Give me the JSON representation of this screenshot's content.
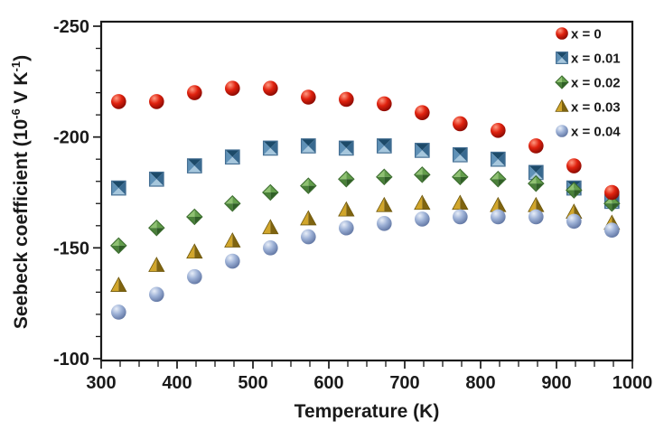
{
  "figure": {
    "background": "#ffffff",
    "frame_color": "#1a1a1a",
    "text_color": "#1a1a1a"
  },
  "chart_data": {
    "type": "scatter",
    "title": "",
    "xlabel": "Temperature (K)",
    "ylabel": "Seebeck coefficient (10⁻⁶ V K⁻¹)",
    "ylabel_parts": [
      {
        "t": "Seebeck coefficient (10"
      },
      {
        "t": "-6",
        "sup": true
      },
      {
        "t": " V K",
        "sup": false
      },
      {
        "t": "-1",
        "sup": true
      },
      {
        "t": ")",
        "sup": false
      }
    ],
    "xlim": [
      300,
      1000
    ],
    "ylim": [
      -250,
      -100
    ],
    "y_axis_reversed_top_is_negative": true,
    "x_major_tick": 100,
    "x_minor_tick": 25,
    "y_major_tick": 50,
    "y_minor_tick": 10,
    "x_tick_labels": [
      "300",
      "400",
      "500",
      "600",
      "700",
      "800",
      "900",
      "1000"
    ],
    "y_tick_labels": [
      "-250",
      "-200",
      "-150",
      "-100"
    ],
    "grid": false,
    "legend_position": "top-right-inside",
    "x": [
      323,
      373,
      423,
      473,
      523,
      573,
      623,
      673,
      723,
      773,
      823,
      873,
      923,
      973
    ],
    "series": [
      {
        "name": "x = 0",
        "marker": "sphere",
        "colors": {
          "light": "#ff9a82",
          "base": "#e0220f",
          "dark": "#7e0600"
        },
        "values": [
          -216,
          -216,
          -220,
          -222,
          -222,
          -218,
          -217,
          -215,
          -211,
          -206,
          -203,
          -196,
          -187,
          -175
        ]
      },
      {
        "name": "x = 0.01",
        "marker": "square",
        "colors": {
          "bright": "#a6c7dd",
          "mid1": "#5f91b7",
          "mid2": "#38698f",
          "dark": "#1c4a69",
          "border": "#456f93"
        },
        "values": [
          -177,
          -181,
          -187,
          -191,
          -195,
          -196,
          -195,
          -196,
          -194,
          -192,
          -190,
          -184,
          -177,
          -171
        ]
      },
      {
        "name": "x = 0.02",
        "marker": "diamond",
        "colors": {
          "bright": "#8fc172",
          "mid1": "#639e4b",
          "mid2": "#4a8139",
          "dark": "#305f27",
          "border": "#3c6d2f"
        },
        "values": [
          -151,
          -159,
          -164,
          -170,
          -175,
          -178,
          -181,
          -182,
          -183,
          -182,
          -181,
          -179,
          -176,
          -170
        ]
      },
      {
        "name": "x = 0.03",
        "marker": "triangle",
        "colors": {
          "light": "#d1a62c",
          "dark": "#7f6410",
          "border": "#6d5609"
        },
        "values": [
          -133,
          -142,
          -148,
          -153,
          -159,
          -163,
          -167,
          -169,
          -170,
          -170,
          -169,
          -169,
          -166,
          -161
        ]
      },
      {
        "name": "x = 0.04",
        "marker": "sphere",
        "colors": {
          "light": "#e8eef8",
          "base": "#9db1d6",
          "dark": "#5a6f9d"
        },
        "values": [
          -121,
          -129,
          -137,
          -144,
          -150,
          -155,
          -159,
          -161,
          -163,
          -164,
          -164,
          -164,
          -162,
          -158
        ]
      }
    ],
    "draw_order": [
      1,
      2,
      3,
      4,
      0
    ]
  }
}
